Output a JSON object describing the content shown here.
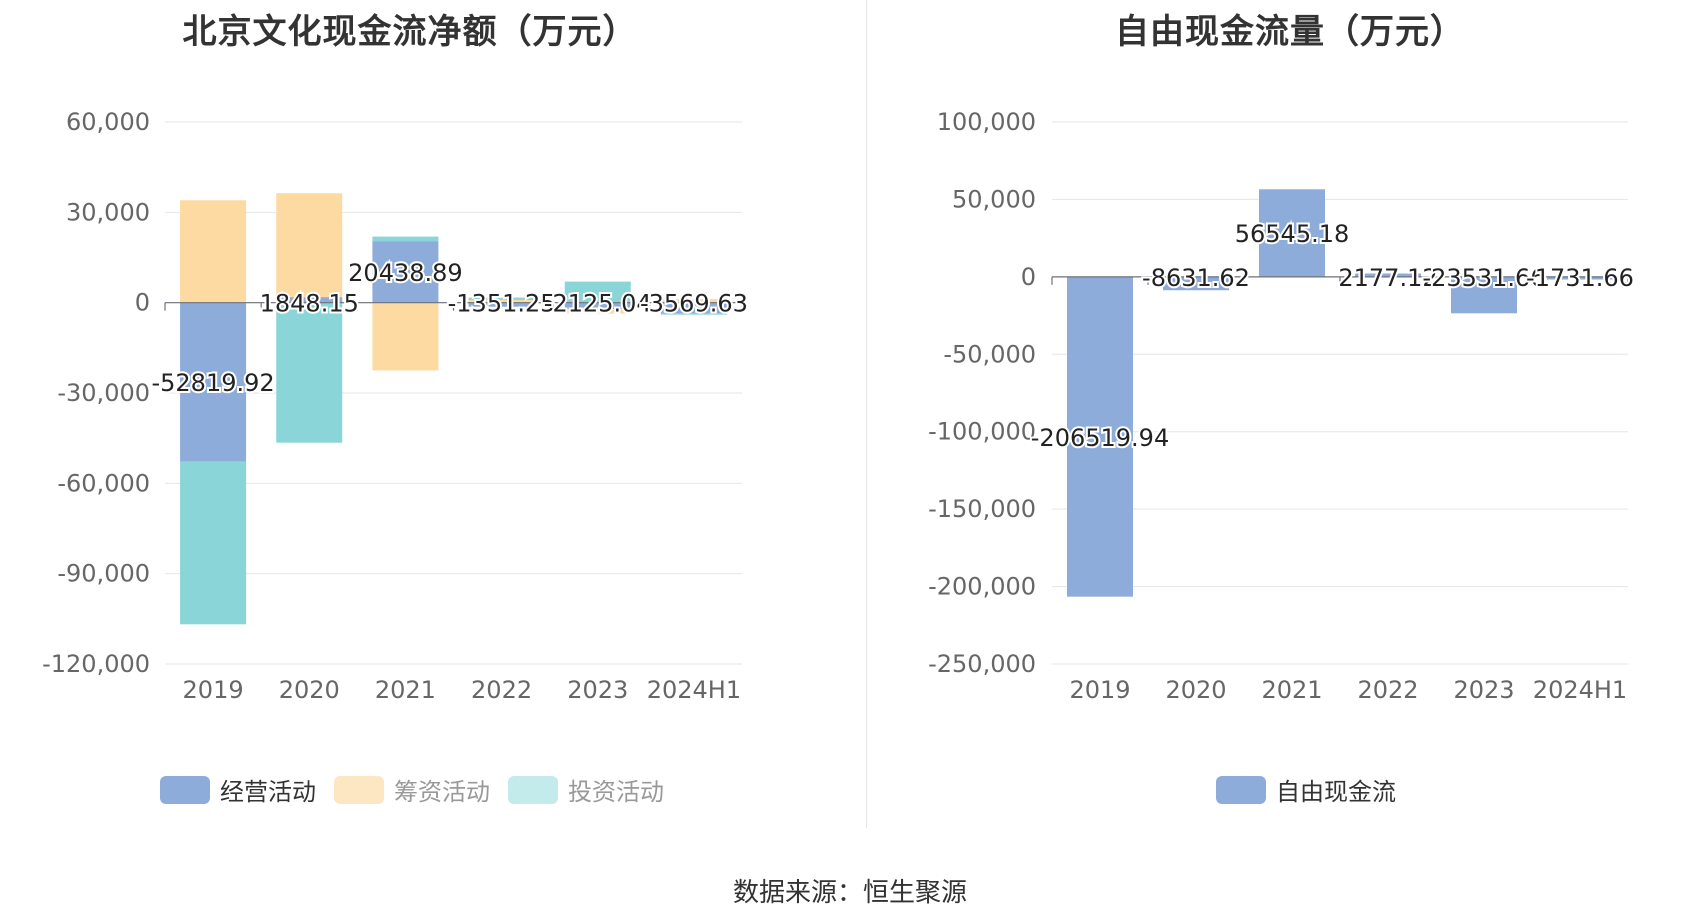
{
  "left": {
    "title": "北京文化现金流净额（万元）",
    "legend": [
      {
        "label": "经营活动",
        "color": "#8eacda"
      },
      {
        "label": "筹资活动",
        "color": "#fddaa1"
      },
      {
        "label": "投资活动",
        "color": "#8ad5d8"
      }
    ]
  },
  "right": {
    "title": "自由现金流量（万元）",
    "legend": [
      {
        "label": "自由现金流",
        "color": "#8eacda"
      }
    ]
  },
  "source": "数据来源：恒生聚源",
  "chart_data": [
    {
      "type": "bar",
      "stacked": true,
      "title": "北京文化现金流净额（万元）",
      "categories": [
        "2019",
        "2020",
        "2021",
        "2022",
        "2023",
        "2024H1"
      ],
      "ylim": [
        -120000,
        60000
      ],
      "yticks": [
        60000,
        30000,
        0,
        -30000,
        -60000,
        -90000,
        -120000
      ],
      "ytick_labels": [
        "60,000",
        "30,000",
        "0",
        "-30,000",
        "-60,000",
        "-90,000",
        "-120,000"
      ],
      "grid": true,
      "series": [
        {
          "name": "经营活动",
          "color": "#8eacda",
          "values": [
            -52819.92,
            1848.15,
            20438.89,
            -1351.25,
            -2125.04,
            -3569.63
          ]
        },
        {
          "name": "筹资活动",
          "color": "#fddaa1",
          "values": [
            34000,
            34500,
            -22500,
            900,
            -1500,
            1200
          ]
        },
        {
          "name": "投资活动",
          "color": "#8ad5d8",
          "values": [
            -54000,
            -46500,
            1500,
            800,
            7000,
            -400
          ]
        }
      ],
      "data_labels": [
        "-52819.92",
        "1848.15",
        "20438.89",
        "-1351.25",
        "-2125.04",
        "-3569.63"
      ]
    },
    {
      "type": "bar",
      "title": "自由现金流量（万元）",
      "categories": [
        "2019",
        "2020",
        "2021",
        "2022",
        "2023",
        "2024H1"
      ],
      "ylim": [
        -250000,
        100000
      ],
      "yticks": [
        100000,
        50000,
        0,
        -50000,
        -100000,
        -150000,
        -200000,
        -250000
      ],
      "ytick_labels": [
        "100,000",
        "50,000",
        "0",
        "-50,000",
        "-100,000",
        "-150,000",
        "-200,000",
        "-250,000"
      ],
      "grid": true,
      "series": [
        {
          "name": "自由现金流",
          "color": "#8eacda",
          "values": [
            -206519.94,
            -8631.62,
            56545.18,
            2177.12,
            -23531.66,
            -1731.66
          ]
        }
      ],
      "data_labels": [
        "-206519.94",
        "-8631.62",
        "56545.18",
        "2177.12",
        "-23531.66",
        "-1731.66"
      ]
    }
  ]
}
